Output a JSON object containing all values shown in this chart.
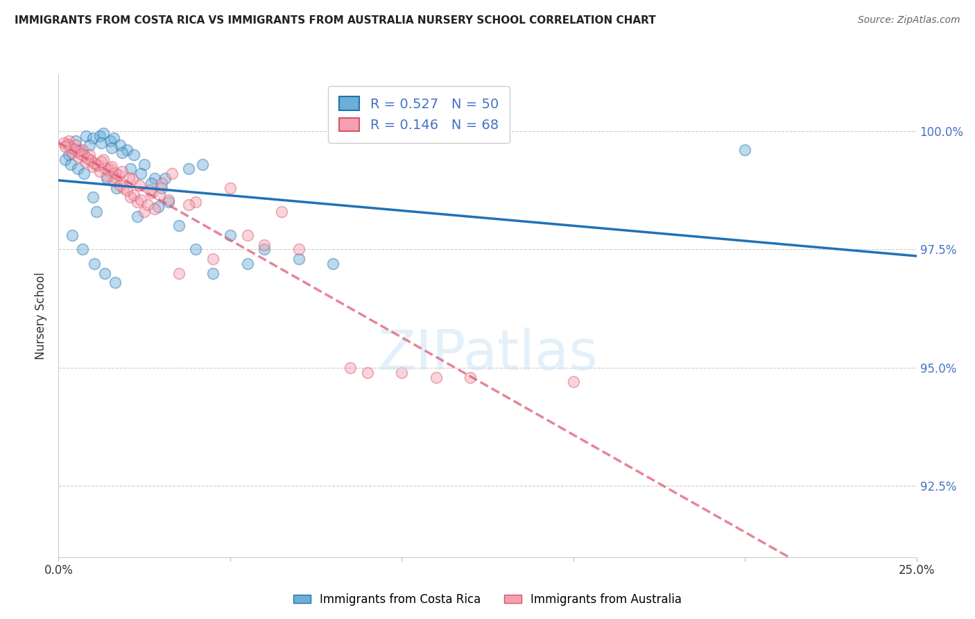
{
  "title": "IMMIGRANTS FROM COSTA RICA VS IMMIGRANTS FROM AUSTRALIA NURSERY SCHOOL CORRELATION CHART",
  "source": "Source: ZipAtlas.com",
  "ylabel": "Nursery School",
  "ytick_values": [
    92.5,
    95.0,
    97.5,
    100.0
  ],
  "xlim": [
    0.0,
    25.0
  ],
  "ylim": [
    91.0,
    101.2
  ],
  "legend_blue_label": "Immigrants from Costa Rica",
  "legend_pink_label": "Immigrants from Australia",
  "R_blue": 0.527,
  "N_blue": 50,
  "R_pink": 0.146,
  "N_pink": 68,
  "blue_color": "#6baed6",
  "pink_color": "#f4a0b0",
  "trendline_blue_color": "#2171b5",
  "trendline_pink_color": "#d9536a",
  "blue_scatter_x": [
    0.5,
    0.8,
    1.0,
    1.2,
    1.3,
    1.5,
    1.6,
    1.8,
    2.0,
    2.2,
    2.5,
    2.8,
    3.0,
    3.2,
    3.5,
    4.0,
    4.5,
    5.0,
    5.5,
    6.0,
    7.0,
    8.0,
    1.0,
    1.1,
    1.4,
    1.7,
    2.1,
    2.4,
    2.7,
    3.1,
    3.8,
    4.2,
    0.3,
    0.6,
    0.9,
    1.25,
    1.55,
    1.85,
    0.4,
    0.7,
    1.05,
    1.35,
    1.65,
    2.3,
    2.9,
    20.0,
    0.2,
    0.35,
    0.55,
    0.75
  ],
  "blue_scatter_y": [
    99.8,
    99.9,
    99.85,
    99.9,
    99.95,
    99.8,
    99.85,
    99.7,
    99.6,
    99.5,
    99.3,
    99.0,
    98.8,
    98.5,
    98.0,
    97.5,
    97.0,
    97.8,
    97.2,
    97.5,
    97.3,
    97.2,
    98.6,
    98.3,
    99.0,
    98.8,
    99.2,
    99.1,
    98.9,
    99.0,
    99.2,
    99.3,
    99.5,
    99.6,
    99.7,
    99.75,
    99.65,
    99.55,
    97.8,
    97.5,
    97.2,
    97.0,
    96.8,
    98.2,
    98.4,
    99.6,
    99.4,
    99.3,
    99.2,
    99.1
  ],
  "pink_scatter_x": [
    0.3,
    0.5,
    0.7,
    0.9,
    1.1,
    1.3,
    1.5,
    1.7,
    1.9,
    2.1,
    2.3,
    2.5,
    2.7,
    3.0,
    3.3,
    4.0,
    5.0,
    6.5,
    9.0,
    11.0,
    0.4,
    0.6,
    0.8,
    1.0,
    1.2,
    1.4,
    1.6,
    1.8,
    2.0,
    2.2,
    2.4,
    2.6,
    2.8,
    0.35,
    0.55,
    0.75,
    0.95,
    1.15,
    1.45,
    1.75,
    2.15,
    0.25,
    0.45,
    0.65,
    0.85,
    1.05,
    1.35,
    1.65,
    2.05,
    5.5,
    7.0,
    3.5,
    4.5,
    1.25,
    1.55,
    1.85,
    2.35,
    2.65,
    2.95,
    3.2,
    3.8,
    0.15,
    0.2,
    6.0,
    8.5,
    10.0,
    12.0,
    15.0
  ],
  "pink_scatter_y": [
    99.8,
    99.7,
    99.6,
    99.5,
    99.3,
    99.4,
    99.2,
    99.0,
    98.8,
    98.6,
    98.5,
    98.3,
    98.7,
    98.9,
    99.1,
    98.5,
    98.8,
    98.3,
    94.9,
    94.8,
    99.55,
    99.45,
    99.35,
    99.25,
    99.15,
    99.05,
    98.95,
    98.85,
    98.75,
    98.65,
    98.55,
    98.45,
    98.35,
    99.65,
    99.58,
    99.48,
    99.38,
    99.28,
    99.18,
    99.08,
    98.98,
    99.72,
    99.62,
    99.52,
    99.42,
    99.32,
    99.22,
    99.12,
    99.02,
    97.8,
    97.5,
    97.0,
    97.3,
    99.35,
    99.25,
    99.15,
    98.85,
    98.75,
    98.65,
    98.55,
    98.45,
    99.75,
    99.68,
    97.6,
    95.0,
    94.9,
    94.8,
    94.7
  ]
}
